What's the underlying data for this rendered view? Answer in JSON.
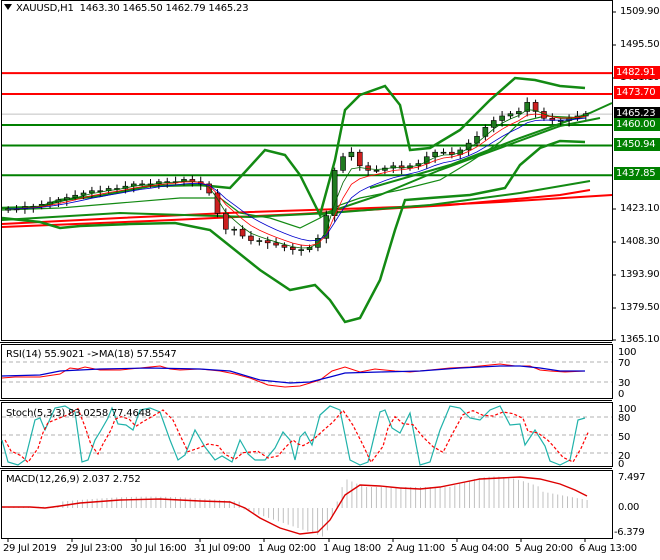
{
  "header": {
    "symbol_timeframe": "XAUUSD,H1",
    "ohlc": "1463.30 1465.50 1462.79 1465.23",
    "menu_icon": "triangle-down-icon"
  },
  "colors": {
    "resistance": "#ff0000",
    "support": "#008000",
    "bollinger": "#138a13",
    "bull_candle": "#1f7a1f",
    "bear_candle": "#cc2020",
    "rsi_line": "#ff0000",
    "rsi_ma": "#0000cc",
    "stoch_main": "#20b2aa",
    "stoch_signal": "#ff0000",
    "macd_hist": "#c0c0c0",
    "macd_signal": "#dd0000",
    "current_price_tag": "#000000"
  },
  "price_axis": {
    "ticks": [
      "1509.90",
      "1495.50",
      "1481.10",
      "1423.10",
      "1408.30",
      "1393.90",
      "1379.50",
      "1365.10"
    ]
  },
  "levels": {
    "resistance": [
      {
        "label": "1482.91",
        "price": 1482.91
      },
      {
        "label": "1473.70",
        "price": 1473.7
      }
    ],
    "current": {
      "label": "1465.23",
      "price": 1465.23
    },
    "support": [
      {
        "label": "1460.00",
        "price": 1460.0
      },
      {
        "label": "1450.94",
        "price": 1450.94
      },
      {
        "label": "1437.85",
        "price": 1437.85
      }
    ]
  },
  "rsi": {
    "label": "RSI(14) 55.9021   ->MA(18) 57.5547",
    "ticks": [
      "100",
      "70",
      "30",
      "0"
    ]
  },
  "stoch": {
    "label": "Stoch(5,3,3) 83.0258 77.4648",
    "ticks": [
      "100",
      "80",
      "50",
      "20",
      "0"
    ]
  },
  "macd": {
    "label": "MACD(12,26,9) 2.037 2.752",
    "ticks": [
      "7.497",
      "0.00",
      "-6.379"
    ]
  },
  "time_axis": {
    "labels": [
      "29 Jul 2019",
      "29 Jul 23:00",
      "30 Jul 16:00",
      "31 Jul 09:00",
      "1 Aug 02:00",
      "1 Aug 18:00",
      "2 Aug 11:00",
      "5 Aug 04:00",
      "5 Aug 20:00",
      "6 Aug 13:00"
    ]
  },
  "chart_data": {
    "type": "candlestick",
    "title": "XAUUSD,H1",
    "ohlc_last": {
      "open": 1463.3,
      "high": 1465.5,
      "low": 1462.79,
      "close": 1465.23
    },
    "ylim": [
      1365.1,
      1509.9
    ],
    "x_labels": [
      "29 Jul 2019",
      "29 Jul 23:00",
      "30 Jul 16:00",
      "31 Jul 09:00",
      "1 Aug 02:00",
      "1 Aug 18:00",
      "2 Aug 11:00",
      "5 Aug 04:00",
      "5 Aug 20:00",
      "6 Aug 13:00"
    ],
    "horizontal_levels": {
      "resistance": [
        1482.91,
        1473.7
      ],
      "support": [
        1460.0,
        1450.94,
        1437.85
      ],
      "current_price": 1465.23
    },
    "close_approx": [
      1423,
      1423,
      1424,
      1424,
      1425,
      1426,
      1427,
      1428,
      1429,
      1430,
      1431,
      1431,
      1432,
      1432,
      1433,
      1434,
      1434,
      1434,
      1435,
      1435,
      1435,
      1436,
      1435,
      1434,
      1430,
      1421,
      1414,
      1414,
      1411,
      1409,
      1409,
      1408,
      1407,
      1406,
      1405,
      1405,
      1406,
      1410,
      1420,
      1440,
      1446,
      1448,
      1442,
      1440,
      1440,
      1441,
      1442,
      1441,
      1442,
      1443,
      1446,
      1448,
      1448,
      1447,
      1449,
      1452,
      1455,
      1459,
      1462,
      1464,
      1465,
      1466,
      1470,
      1466,
      1463,
      1462,
      1462,
      1463,
      1464,
      1465
    ],
    "indicators": {
      "RSI(14)": 55.9021,
      "MA(18) of RSI": 57.5547,
      "Stoch(5,3,3) %K": 83.0258,
      "Stoch(5,3,3) %D": 77.4648,
      "MACD(12,26,9) main": 2.037,
      "MACD(12,26,9) signal": 2.752
    },
    "rsi_levels": [
      70,
      30
    ],
    "stoch_levels": [
      80,
      50,
      20
    ],
    "macd_ylim": [
      -6.379,
      7.497
    ]
  }
}
